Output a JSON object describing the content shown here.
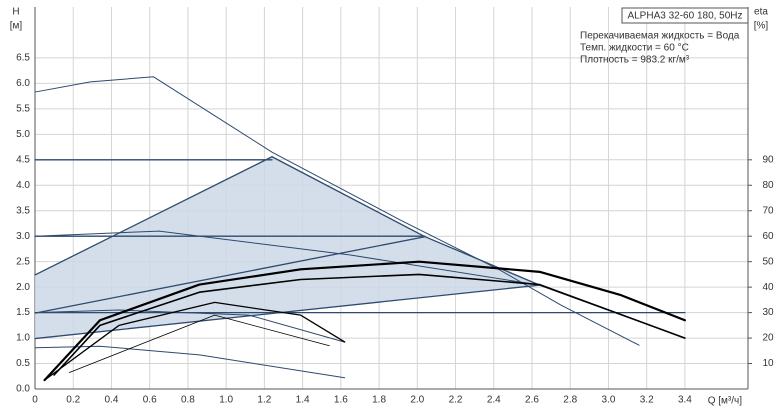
{
  "chart_data": {
    "type": "line",
    "title": "ALPHA3 32-60 180, 50Hz",
    "annotations": [
      "Перекачиваемая жидкость = Вода",
      "Темп. жидкости = 60 °C",
      "Плотность = 983.2 кг/м³"
    ],
    "y_label": "H",
    "y_unit": "[м]",
    "y2_label": "eta",
    "y2_unit": "[%]",
    "x_label": "Q [м³/ч]",
    "xlim": [
      0,
      3.73
    ],
    "xticks": [
      0,
      0.2,
      0.4,
      0.6,
      0.8,
      {
        "value": 1,
        "label": "1.0"
      },
      1.2,
      1.4,
      1.6,
      1.8,
      {
        "value": 2,
        "label": "2.0"
      },
      2.2,
      2.4,
      2.6,
      2.8,
      {
        "value": 3,
        "label": "3.0"
      },
      3.2,
      3.4
    ],
    "ylim": [
      0,
      7.5
    ],
    "yticks": [
      {
        "value": 0,
        "label": "0.0"
      },
      0.5,
      {
        "value": 1,
        "label": "1.0"
      },
      1.5,
      {
        "value": 2,
        "label": "2.0"
      },
      2.5,
      {
        "value": 3,
        "label": "3.0"
      },
      3.5,
      {
        "value": 4,
        "label": "4.0"
      },
      4.5,
      {
        "value": 5,
        "label": "5.0"
      },
      5.5,
      {
        "value": 6,
        "label": "6.0"
      },
      6.5
    ],
    "y2lim": [
      0,
      150
    ],
    "y2ticks": [
      10,
      20,
      30,
      40,
      50,
      60,
      70,
      80,
      90
    ],
    "grid": true,
    "region": {
      "color": "#cdd8e6",
      "x": [
        0,
        1.24,
        2.04,
        2.64,
        0
      ],
      "values": [
        2.24,
        4.56,
        2.99,
        2.04,
        0.99
      ]
    },
    "series": [
      {
        "color": "#2e4a6e",
        "width": 1,
        "x": [
          0,
          0.29,
          0.62,
          1.24,
          1.91,
          2.43,
          2.75,
          3.16
        ],
        "values": [
          5.83,
          6.03,
          6.13,
          4.65,
          3.32,
          2.34,
          1.65,
          0.86
        ]
      },
      {
        "color": "#2e4a6e",
        "width": 1.3,
        "x": [
          1.24,
          2.04,
          2.64,
          3.4
        ],
        "values": [
          4.56,
          2.99,
          2.04,
          1.0
        ]
      },
      {
        "color": "#2e4a6e",
        "width": 1.3,
        "x": [
          0,
          1.24
        ],
        "values": [
          4.5,
          4.5
        ]
      },
      {
        "color": "#2e4a6e",
        "width": 1.3,
        "x": [
          0,
          2.04
        ],
        "values": [
          3.0,
          3.0
        ]
      },
      {
        "color": "#2e4a6e",
        "width": 1.3,
        "x": [
          0,
          3.4
        ],
        "values": [
          1.5,
          1.5
        ]
      },
      {
        "color": "#2e4a6e",
        "width": 1.3,
        "x": [
          0,
          1.24
        ],
        "values": [
          2.24,
          4.56
        ]
      },
      {
        "color": "#2e4a6e",
        "width": 1.3,
        "x": [
          0,
          2.04
        ],
        "values": [
          1.49,
          2.99
        ]
      },
      {
        "color": "#2e4a6e",
        "width": 1.3,
        "x": [
          0,
          2.64
        ],
        "values": [
          0.99,
          2.04
        ]
      },
      {
        "color": "#2e4a6e",
        "width": 1,
        "x": [
          0,
          0.65,
          1.65,
          2.64,
          3.4
        ],
        "values": [
          3.0,
          3.1,
          2.63,
          2.04,
          1.0
        ]
      },
      {
        "color": "#2e4a6e",
        "width": 1,
        "x": [
          0,
          0.44,
          1.12,
          1.62
        ],
        "values": [
          1.5,
          1.55,
          1.45,
          0.92
        ]
      },
      {
        "color": "#2e4a6e",
        "width": 1,
        "x": [
          0,
          0.34,
          0.86,
          1.62
        ],
        "values": [
          0.81,
          0.84,
          0.67,
          0.22
        ]
      },
      {
        "color": "#000000",
        "width": 2.2,
        "axis": "y2",
        "x": [
          0.05,
          0.34,
          0.86,
          1.39,
          2.01,
          2.64,
          3.06,
          3.4
        ],
        "values": [
          3.5,
          27,
          41,
          47,
          50,
          46,
          37,
          27
        ]
      },
      {
        "color": "#000000",
        "width": 1.6,
        "axis": "y2",
        "x": [
          0.1,
          0.34,
          0.86,
          1.39,
          2.01,
          2.64,
          3.4
        ],
        "values": [
          5.5,
          25,
          38,
          43,
          45,
          41,
          20
        ]
      },
      {
        "color": "#000000",
        "width": 1.3,
        "axis": "y2",
        "x": [
          0.05,
          0.44,
          0.94,
          1.39,
          1.62
        ],
        "values": [
          3.5,
          25,
          34,
          29,
          18.5
        ]
      },
      {
        "color": "#000000",
        "width": 0.8,
        "axis": "y2",
        "x": [
          0.18,
          0.94,
          1.54
        ],
        "values": [
          6.5,
          29,
          17
        ]
      }
    ]
  }
}
